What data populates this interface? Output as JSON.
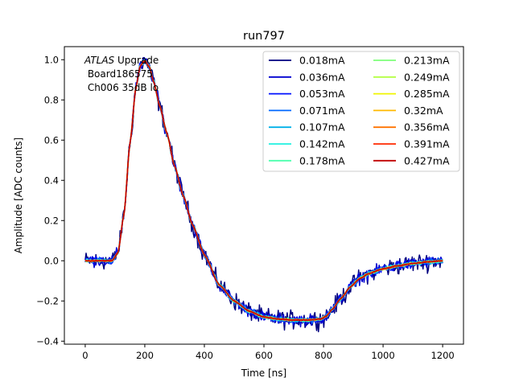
{
  "chart_data": {
    "type": "line",
    "title": "run797",
    "xlabel": "Time [ns]",
    "ylabel": "Amplitude [ADC counts]",
    "xlim": [
      -70,
      1270
    ],
    "ylim": [
      -0.415,
      1.065
    ],
    "xticks": [
      0,
      200,
      400,
      600,
      800,
      1000,
      1200
    ],
    "xtick_labels": [
      "0",
      "200",
      "400",
      "600",
      "800",
      "1000",
      "1200"
    ],
    "yticks": [
      -0.4,
      -0.2,
      0.0,
      0.2,
      0.4,
      0.6,
      0.8,
      1.0
    ],
    "ytick_labels": [
      "−0.4",
      "−0.2",
      "0.0",
      "0.2",
      "0.4",
      "0.6",
      "0.8",
      "1.0"
    ],
    "grid": false,
    "legend_position": "upper-right",
    "legend_columns": 2,
    "annotation": {
      "line1_italic": "ATLAS",
      "line1_rest": " Upgrade",
      "line2": " Board186575",
      "line3": " Ch006 35dB lo"
    },
    "shape_points": {
      "t": [
        0,
        90,
        110,
        130,
        150,
        170,
        185,
        200,
        215,
        230,
        250,
        275,
        300,
        330,
        360,
        400,
        450,
        500,
        550,
        600,
        650,
        700,
        750,
        790,
        810,
        830,
        860,
        890,
        920,
        950,
        1000,
        1050,
        1100,
        1150,
        1200
      ],
      "amp": [
        0.0,
        0.0,
        0.04,
        0.23,
        0.58,
        0.86,
        0.97,
        0.995,
        0.965,
        0.89,
        0.77,
        0.63,
        0.47,
        0.32,
        0.18,
        0.03,
        -0.12,
        -0.2,
        -0.25,
        -0.28,
        -0.29,
        -0.295,
        -0.295,
        -0.29,
        -0.275,
        -0.24,
        -0.185,
        -0.13,
        -0.09,
        -0.065,
        -0.04,
        -0.025,
        -0.013,
        -0.006,
        0.0
      ]
    },
    "series": [
      {
        "name": "0.018mA",
        "color": "#00007f",
        "noise": 0.022
      },
      {
        "name": "0.036mA",
        "color": "#0000d0",
        "noise": 0.014
      },
      {
        "name": "0.053mA",
        "color": "#0010ff",
        "noise": 0.01
      },
      {
        "name": "0.071mA",
        "color": "#0068ff",
        "noise": 0.007
      },
      {
        "name": "0.107mA",
        "color": "#00b0e8",
        "noise": 0.005
      },
      {
        "name": "0.142mA",
        "color": "#1ff0e0",
        "noise": 0.004
      },
      {
        "name": "0.178mA",
        "color": "#4affad",
        "noise": 0.003
      },
      {
        "name": "0.213mA",
        "color": "#7dff7a",
        "noise": 0.003
      },
      {
        "name": "0.249mA",
        "color": "#b4ff43",
        "noise": 0.002
      },
      {
        "name": "0.285mA",
        "color": "#f0f500",
        "noise": 0.002
      },
      {
        "name": "0.32mA",
        "color": "#ffb900",
        "noise": 0.002
      },
      {
        "name": "0.356mA",
        "color": "#ff7300",
        "noise": 0.002
      },
      {
        "name": "0.391mA",
        "color": "#ff2900",
        "noise": 0.001
      },
      {
        "name": "0.427mA",
        "color": "#c00000",
        "noise": 0.001
      }
    ]
  }
}
